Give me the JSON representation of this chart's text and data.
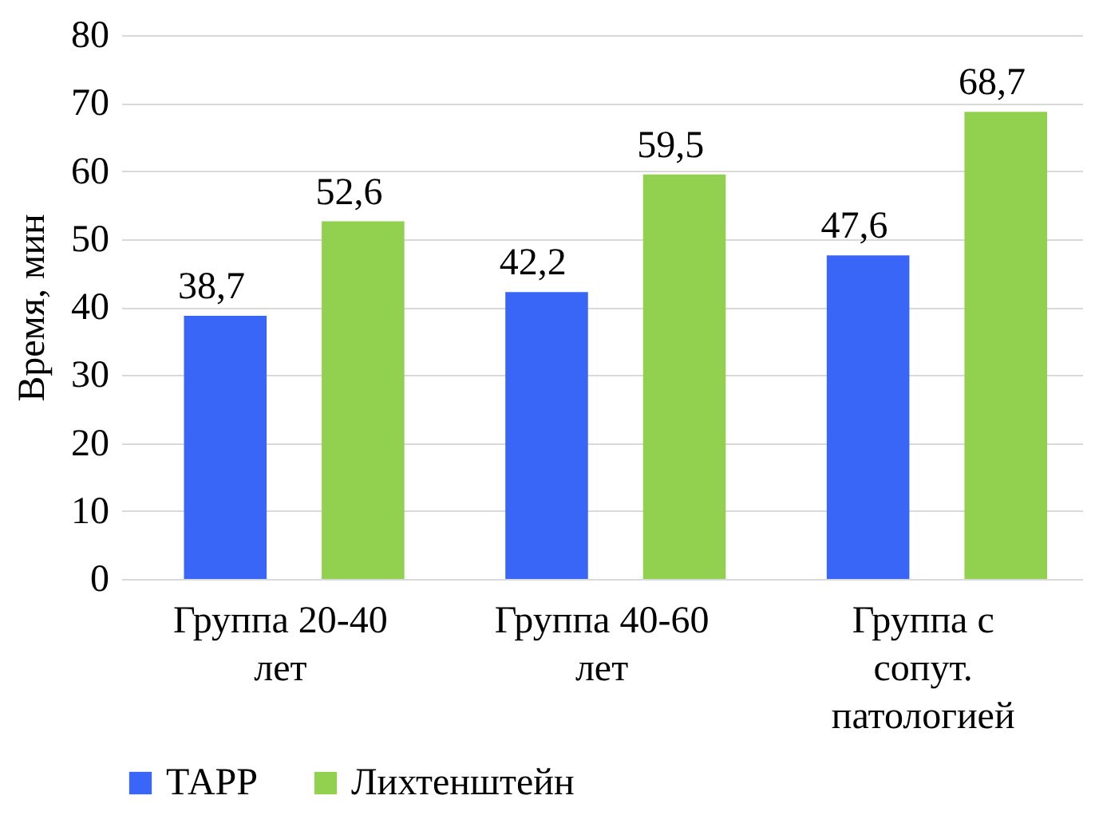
{
  "chart_data": {
    "type": "bar",
    "ylabel": "Время, мин",
    "categories": [
      "Группа 20-40 лет",
      "Группа 40-60 лет",
      "Группа с сопут. патологией"
    ],
    "series": [
      {
        "name": "ТАРР",
        "color": "#3a66f7",
        "values": [
          38.7,
          42.2,
          47.6
        ],
        "value_labels": [
          "38,7",
          "42,2",
          "47,6"
        ]
      },
      {
        "name": "Лихтенштейн",
        "color": "#92d050",
        "values": [
          52.6,
          59.5,
          68.7
        ],
        "value_labels": [
          "52,6",
          "59,5",
          "68,7"
        ]
      }
    ],
    "ylim": [
      0,
      80
    ],
    "yticks": [
      0,
      10,
      20,
      30,
      40,
      50,
      60,
      70,
      80
    ],
    "grid": "y",
    "legend": "bottom"
  }
}
